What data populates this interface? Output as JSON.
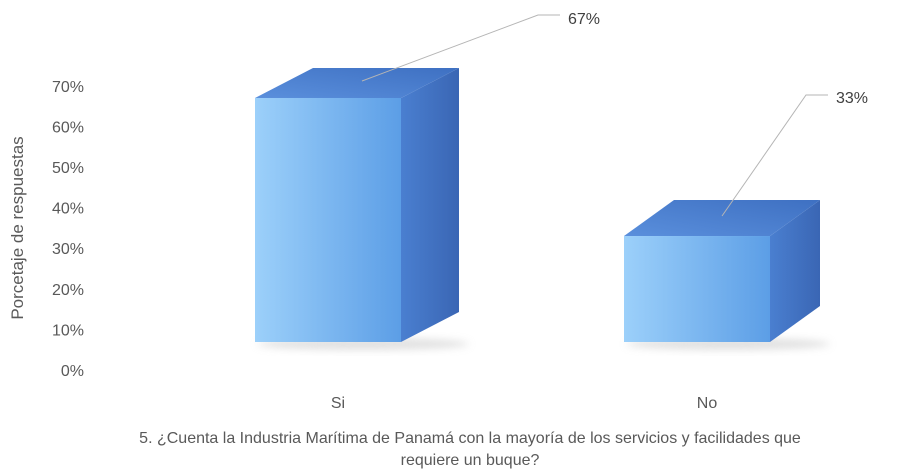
{
  "chart_data": {
    "type": "bar",
    "style": "3d-column",
    "categories": [
      "Si",
      "No"
    ],
    "values": [
      67,
      33
    ],
    "data_labels": [
      "67%",
      "33%"
    ],
    "ylabel": "Porcetaje de respuestas",
    "yticks": [
      "0%",
      "10%",
      "20%",
      "30%",
      "40%",
      "50%",
      "60%",
      "70%"
    ],
    "ylim": [
      0,
      70
    ],
    "grid": false,
    "legend": "none",
    "colors": {
      "front_light": "#9cd0fa",
      "front_dark": "#5c9ee6",
      "top": "#4a7fd0",
      "side": "#3f6fbe",
      "shadow": "#c8c8c8",
      "leader": "#b5b5b5"
    }
  },
  "caption": {
    "line1": "5. ¿Cuenta la Industria Marítima de Panamá con la mayoría de los servicios y facilidades que",
    "line2": "requiere un buque?"
  }
}
